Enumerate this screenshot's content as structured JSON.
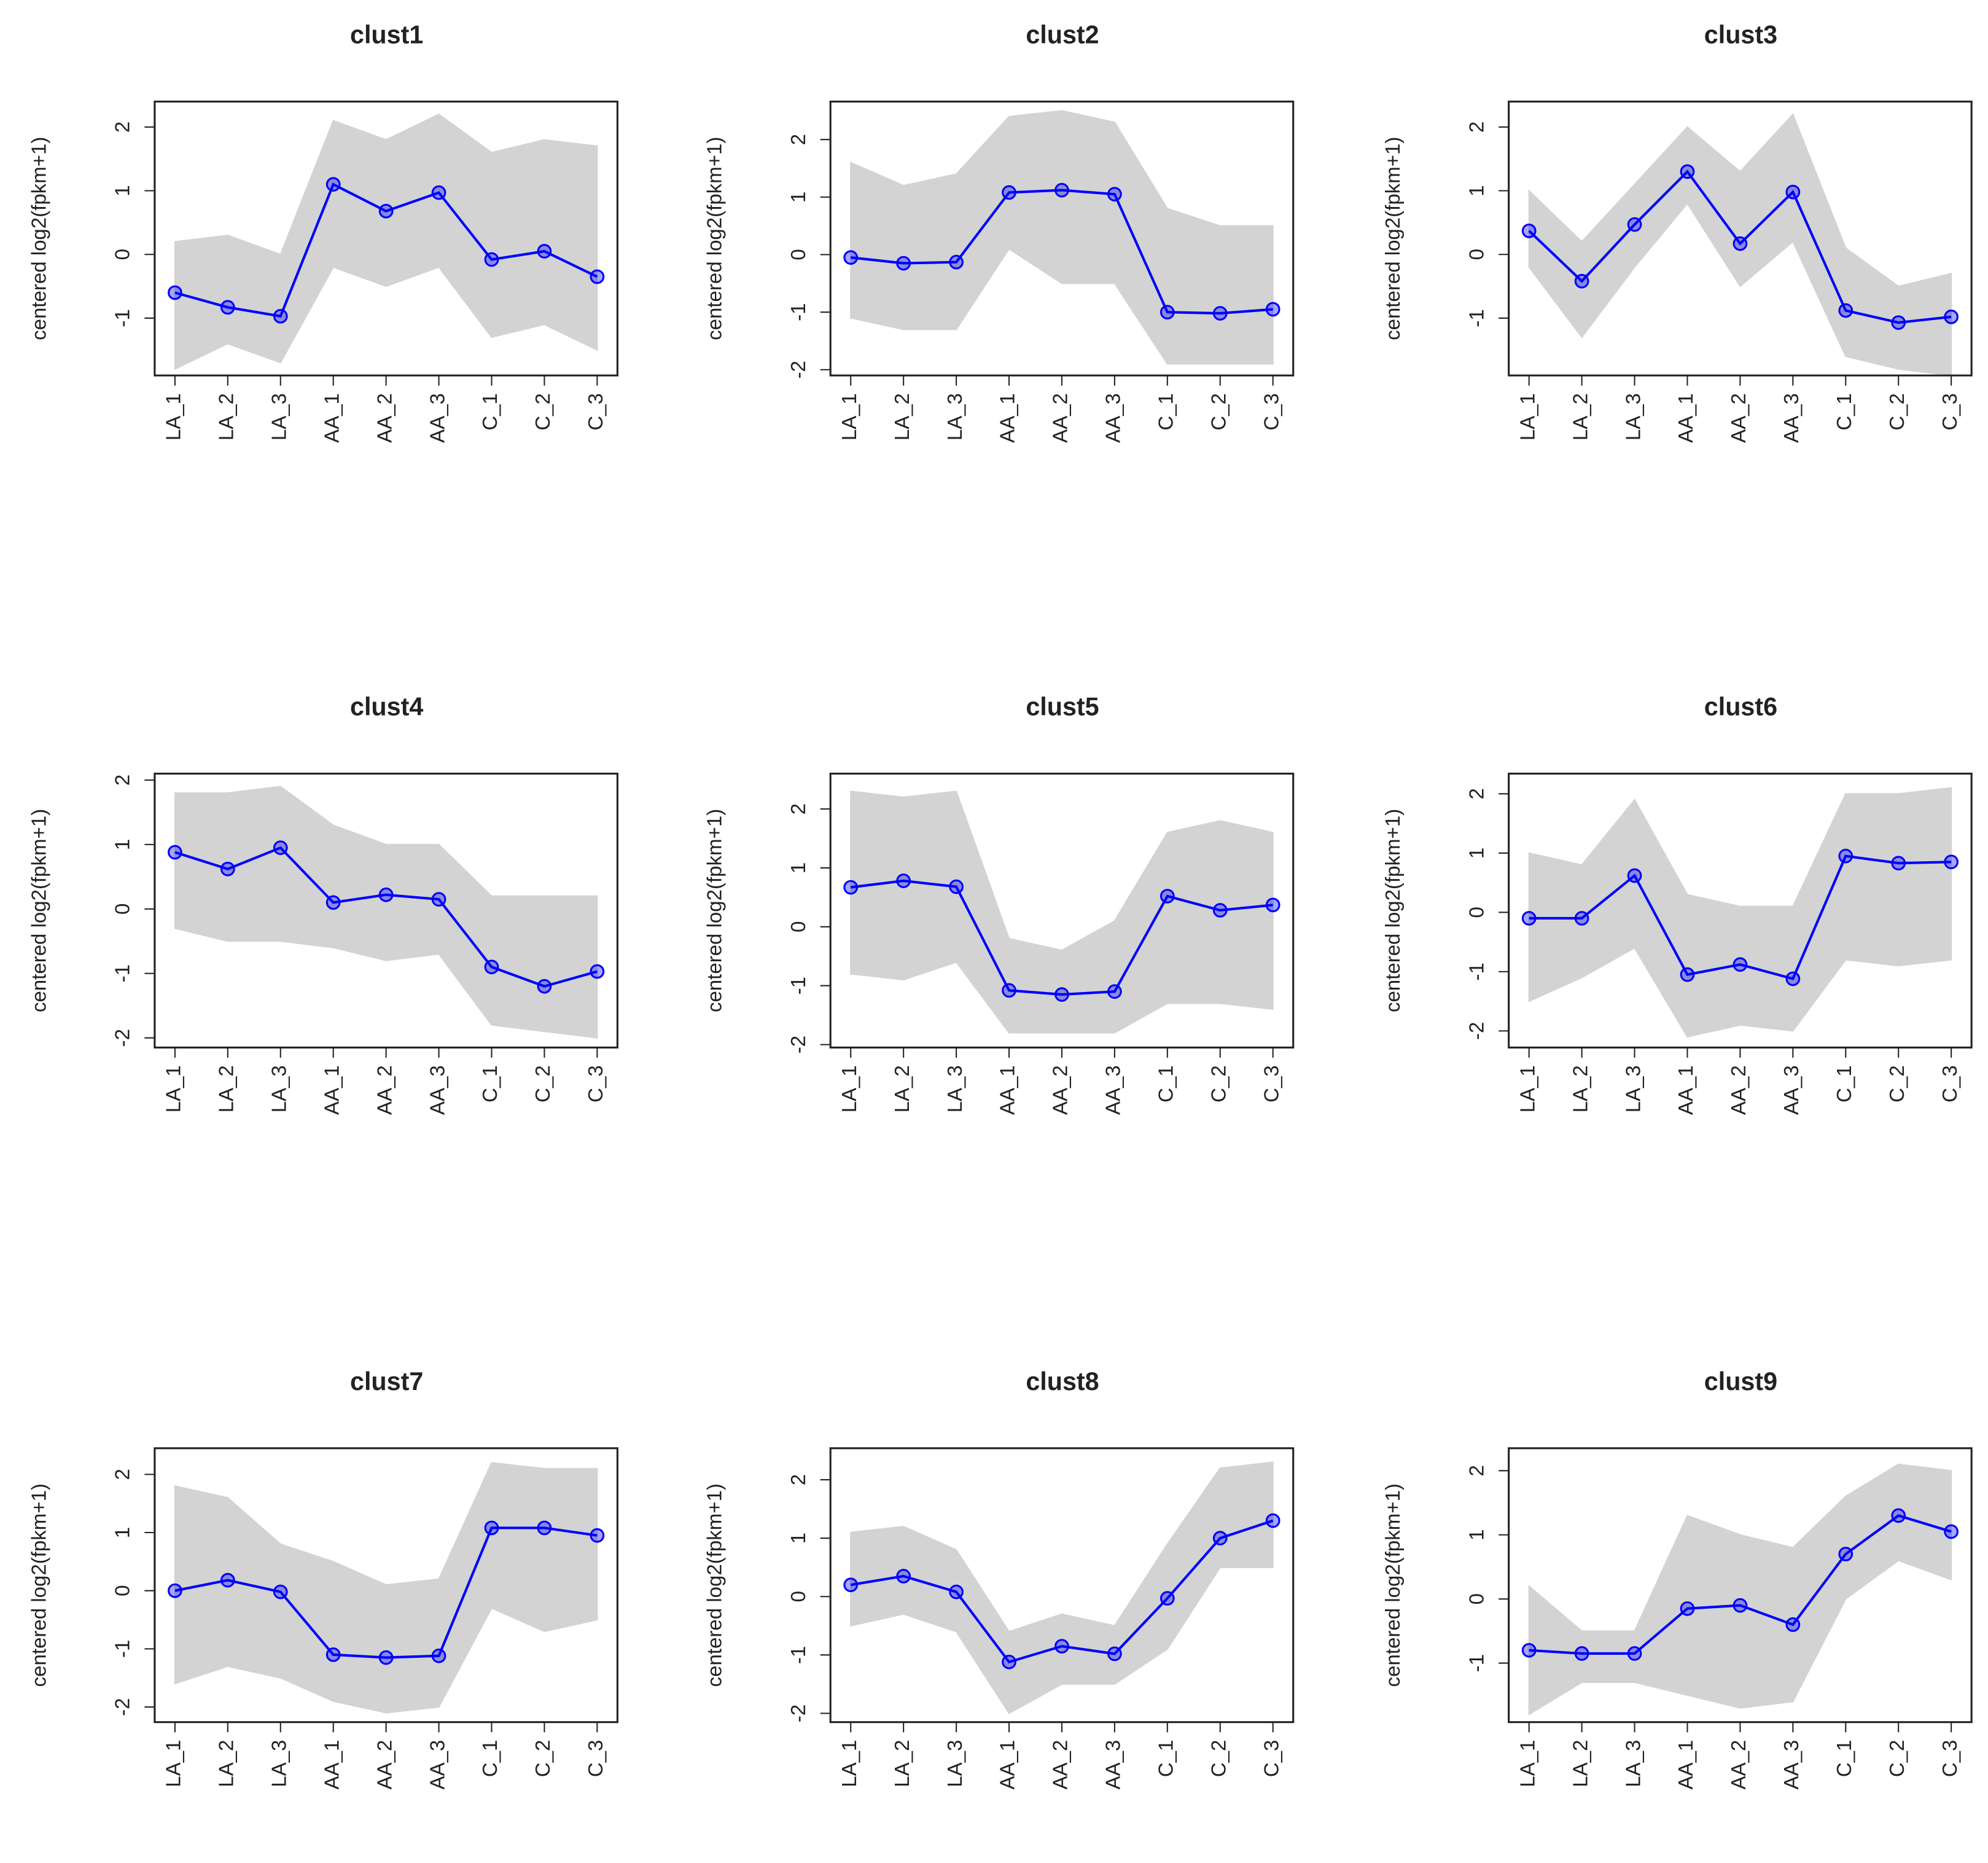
{
  "chart_data": [
    {
      "type": "line",
      "title": "clust1",
      "ylabel": "centered log2(fpkm+1)",
      "categories": [
        "LA_1",
        "LA_2",
        "LA_3",
        "AA_1",
        "AA_2",
        "AA_3",
        "C_1",
        "C_2",
        "C_3"
      ],
      "ylim": [
        -1.9,
        2.4
      ],
      "yticks": [
        -1,
        0,
        1,
        2
      ],
      "range": {
        "color": "#d3d3d3",
        "high": [
          0.2,
          0.3,
          0,
          2.1,
          1.8,
          2.2,
          1.6,
          1.8,
          1.7
        ],
        "low": [
          -1.8,
          -1.4,
          -1.7,
          -0.2,
          -0.5,
          -0.2,
          -1.3,
          -1.1,
          -1.5
        ]
      },
      "series": [
        {
          "color": "#0000ff",
          "values": [
            -0.6,
            -0.83,
            -0.97,
            1.1,
            0.68,
            0.97,
            -0.08,
            0.05,
            -0.35
          ]
        }
      ]
    },
    {
      "type": "line",
      "title": "clust2",
      "ylabel": "centered log2(fpkm+1)",
      "categories": [
        "LA_1",
        "LA_2",
        "LA_3",
        "AA_1",
        "AA_2",
        "AA_3",
        "C_1",
        "C_2",
        "C_3"
      ],
      "ylim": [
        -2.1,
        2.66
      ],
      "yticks": [
        -2,
        -1,
        0,
        1,
        2
      ],
      "range": {
        "color": "#d3d3d3",
        "high": [
          1.6,
          1.2,
          1.4,
          2.4,
          2.5,
          2.3,
          0.8,
          0.5,
          0.5
        ],
        "low": [
          -1.1,
          -1.3,
          -1.3,
          0.1,
          -0.5,
          -0.5,
          -1.9,
          -1.9,
          -1.9
        ]
      },
      "series": [
        {
          "color": "#0000ff",
          "values": [
            -0.05,
            -0.15,
            -0.13,
            1.08,
            1.12,
            1.05,
            -1.0,
            -1.02,
            -0.95
          ]
        }
      ]
    },
    {
      "type": "line",
      "title": "clust3",
      "ylabel": "centered log2(fpkm+1)",
      "categories": [
        "LA_1",
        "LA_2",
        "LA_3",
        "AA_1",
        "AA_2",
        "AA_3",
        "C_1",
        "C_2",
        "C_3"
      ],
      "ylim": [
        -1.9,
        2.4
      ],
      "yticks": [
        -1,
        0,
        1,
        2
      ],
      "range": {
        "color": "#d3d3d3",
        "high": [
          1.0,
          0.2,
          1.1,
          2.0,
          1.3,
          2.2,
          0.1,
          -0.5,
          -0.3
        ],
        "low": [
          -0.2,
          -1.3,
          -0.2,
          0.8,
          -0.5,
          0.2,
          -1.6,
          -1.8,
          -1.9
        ]
      },
      "series": [
        {
          "color": "#0000ff",
          "values": [
            0.37,
            -0.42,
            0.47,
            1.3,
            0.17,
            0.98,
            -0.88,
            -1.07,
            -0.98
          ]
        }
      ]
    },
    {
      "type": "line",
      "title": "clust4",
      "ylabel": "centered log2(fpkm+1)",
      "categories": [
        "LA_1",
        "LA_2",
        "LA_3",
        "AA_1",
        "AA_2",
        "AA_3",
        "C_1",
        "C_2",
        "C_3"
      ],
      "ylim": [
        -2.15,
        2.1
      ],
      "yticks": [
        -2,
        -1,
        0,
        1,
        2
      ],
      "range": {
        "color": "#d3d3d3",
        "high": [
          1.8,
          1.8,
          1.9,
          1.3,
          1.0,
          1.0,
          0.2,
          0.2,
          0.2
        ],
        "low": [
          -0.3,
          -0.5,
          -0.5,
          -0.6,
          -0.8,
          -0.7,
          -1.8,
          -1.9,
          -2.0
        ]
      },
      "series": [
        {
          "color": "#0000ff",
          "values": [
            0.88,
            0.62,
            0.95,
            0.1,
            0.22,
            0.15,
            -0.9,
            -1.2,
            -0.97
          ]
        }
      ]
    },
    {
      "type": "line",
      "title": "clust5",
      "ylabel": "centered log2(fpkm+1)",
      "categories": [
        "LA_1",
        "LA_2",
        "LA_3",
        "AA_1",
        "AA_2",
        "AA_3",
        "C_1",
        "C_2",
        "C_3"
      ],
      "ylim": [
        -2.05,
        2.6
      ],
      "yticks": [
        -2,
        -1,
        0,
        1,
        2
      ],
      "range": {
        "color": "#d3d3d3",
        "high": [
          2.3,
          2.2,
          2.3,
          -0.2,
          -0.4,
          0.1,
          1.6,
          1.8,
          1.6
        ],
        "low": [
          -0.8,
          -0.9,
          -0.6,
          -1.8,
          -1.8,
          -1.8,
          -1.3,
          -1.3,
          -1.4
        ]
      },
      "series": [
        {
          "color": "#0000ff",
          "values": [
            0.67,
            0.78,
            0.68,
            -1.08,
            -1.15,
            -1.1,
            0.52,
            0.28,
            0.37
          ]
        }
      ]
    },
    {
      "type": "line",
      "title": "clust6",
      "ylabel": "centered log2(fpkm+1)",
      "categories": [
        "LA_1",
        "LA_2",
        "LA_3",
        "AA_1",
        "AA_2",
        "AA_3",
        "C_1",
        "C_2",
        "C_3"
      ],
      "ylim": [
        -2.28,
        2.34
      ],
      "yticks": [
        -2,
        -1,
        0,
        1,
        2
      ],
      "range": {
        "color": "#d3d3d3",
        "high": [
          1.0,
          0.8,
          1.9,
          0.3,
          0.1,
          0.1,
          2.0,
          2.0,
          2.1
        ],
        "low": [
          -1.5,
          -1.1,
          -0.6,
          -2.1,
          -1.9,
          -2.0,
          -0.8,
          -0.9,
          -0.8
        ]
      },
      "series": [
        {
          "color": "#0000ff",
          "values": [
            -0.1,
            -0.1,
            0.62,
            -1.05,
            -0.88,
            -1.12,
            0.95,
            0.83,
            0.85
          ]
        }
      ]
    },
    {
      "type": "line",
      "title": "clust7",
      "ylabel": "centered log2(fpkm+1)",
      "categories": [
        "LA_1",
        "LA_2",
        "LA_3",
        "AA_1",
        "AA_2",
        "AA_3",
        "C_1",
        "C_2",
        "C_3"
      ],
      "ylim": [
        -2.26,
        2.45
      ],
      "yticks": [
        -2,
        -1,
        0,
        1,
        2
      ],
      "range": {
        "color": "#d3d3d3",
        "high": [
          1.8,
          1.6,
          0.8,
          0.5,
          0.1,
          0.2,
          2.2,
          2.1,
          2.1
        ],
        "low": [
          -1.6,
          -1.3,
          -1.5,
          -1.9,
          -2.1,
          -2.0,
          -0.3,
          -0.7,
          -0.5
        ]
      },
      "series": [
        {
          "color": "#0000ff",
          "values": [
            0.0,
            0.18,
            -0.02,
            -1.1,
            -1.15,
            -1.12,
            1.08,
            1.08,
            0.95
          ]
        }
      ]
    },
    {
      "type": "line",
      "title": "clust8",
      "ylabel": "centered log2(fpkm+1)",
      "categories": [
        "LA_1",
        "LA_2",
        "LA_3",
        "AA_1",
        "AA_2",
        "AA_3",
        "C_1",
        "C_2",
        "C_3"
      ],
      "ylim": [
        -2.15,
        2.54
      ],
      "yticks": [
        -2,
        -1,
        0,
        1,
        2
      ],
      "range": {
        "color": "#d3d3d3",
        "high": [
          1.1,
          1.2,
          0.8,
          -0.6,
          -0.3,
          -0.5,
          0.9,
          2.2,
          2.3
        ],
        "low": [
          -0.5,
          -0.3,
          -0.6,
          -2.0,
          -1.5,
          -1.5,
          -0.9,
          0.5,
          0.5
        ]
      },
      "series": [
        {
          "color": "#0000ff",
          "values": [
            0.2,
            0.35,
            0.08,
            -1.12,
            -0.85,
            -0.98,
            -0.03,
            1.0,
            1.3
          ]
        }
      ]
    },
    {
      "type": "line",
      "title": "clust9",
      "ylabel": "centered log2(fpkm+1)",
      "categories": [
        "LA_1",
        "LA_2",
        "LA_3",
        "AA_1",
        "AA_2",
        "AA_3",
        "C_1",
        "C_2",
        "C_3"
      ],
      "ylim": [
        -1.92,
        2.35
      ],
      "yticks": [
        -1,
        0,
        1,
        2
      ],
      "range": {
        "color": "#d3d3d3",
        "high": [
          0.2,
          -0.5,
          -0.5,
          1.3,
          1.0,
          0.8,
          1.6,
          2.1,
          2.0
        ],
        "low": [
          -1.8,
          -1.3,
          -1.3,
          -1.5,
          -1.7,
          -1.6,
          0,
          0.6,
          0.3
        ]
      },
      "series": [
        {
          "color": "#0000ff",
          "values": [
            -0.8,
            -0.85,
            -0.85,
            -0.15,
            -0.1,
            -0.4,
            0.7,
            1.3,
            1.05
          ]
        }
      ]
    }
  ]
}
